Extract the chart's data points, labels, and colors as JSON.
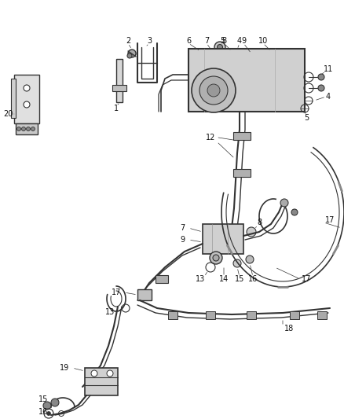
{
  "background_color": "#ffffff",
  "line_color": "#333333",
  "label_color": "#111111",
  "label_fontsize": 7.0,
  "fig_width": 4.38,
  "fig_height": 5.33,
  "dpi": 100
}
